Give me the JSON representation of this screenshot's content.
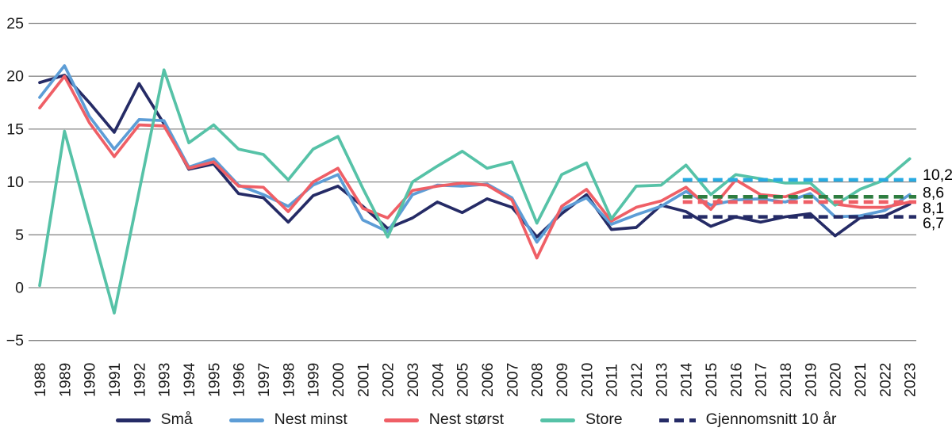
{
  "chart_data": {
    "type": "line",
    "title": "",
    "xlabel": "",
    "ylabel": "",
    "grid": true,
    "grid_color": "#8a8a8a",
    "text_color": "#1a1a1a",
    "background": "#ffffff",
    "x": [
      1988,
      1989,
      1990,
      1991,
      1992,
      1993,
      1994,
      1995,
      1996,
      1997,
      1998,
      1999,
      2000,
      2001,
      2002,
      2003,
      2004,
      2005,
      2006,
      2007,
      2008,
      2009,
      2010,
      2011,
      2012,
      2013,
      2014,
      2015,
      2016,
      2017,
      2018,
      2019,
      2020,
      2021,
      2022,
      2023
    ],
    "yticks": [
      {
        "v": 25,
        "label": "25"
      },
      {
        "v": 20,
        "label": "20"
      },
      {
        "v": 15,
        "label": "15"
      },
      {
        "v": 10,
        "label": "10"
      },
      {
        "v": 5,
        "label": "5"
      },
      {
        "v": 0,
        "label": "0"
      },
      {
        "v": -5,
        "label": "−5"
      }
    ],
    "ylim": [
      -5,
      25
    ],
    "series": [
      {
        "name": "Små",
        "color": "#252b66",
        "values": [
          19.4,
          20.1,
          17.5,
          14.7,
          19.3,
          15.5,
          11.2,
          11.7,
          8.9,
          8.5,
          6.2,
          8.7,
          9.6,
          7.7,
          5.6,
          6.6,
          8.1,
          7.1,
          8.4,
          7.6,
          4.8,
          7.0,
          8.8,
          5.5,
          5.7,
          7.8,
          7.2,
          5.8,
          6.7,
          6.2,
          6.7,
          7.0,
          4.9,
          6.6,
          6.8,
          7.9
        ]
      },
      {
        "name": "Nest minst",
        "color": "#5d9dd6",
        "values": [
          18.0,
          21.0,
          16.2,
          13.1,
          15.9,
          15.8,
          11.4,
          12.2,
          9.7,
          8.8,
          7.7,
          9.7,
          10.7,
          6.4,
          5.3,
          8.8,
          9.7,
          9.6,
          9.8,
          8.5,
          4.3,
          7.4,
          8.5,
          6.0,
          6.9,
          7.7,
          9.1,
          7.8,
          8.3,
          8.4,
          8.1,
          8.9,
          6.7,
          6.8,
          7.3,
          8.8
        ]
      },
      {
        "name": "Nest størst",
        "color": "#ef5f66",
        "values": [
          17.0,
          20.0,
          15.6,
          12.4,
          15.4,
          15.3,
          11.3,
          11.9,
          9.6,
          9.5,
          7.2,
          10.0,
          11.3,
          7.5,
          6.6,
          9.2,
          9.6,
          9.9,
          9.7,
          8.3,
          2.8,
          7.7,
          9.3,
          6.3,
          7.6,
          8.2,
          9.5,
          7.4,
          10.2,
          8.8,
          8.6,
          9.4,
          7.9,
          7.6,
          7.6,
          8.1
        ]
      },
      {
        "name": "Store",
        "color": "#56c2a7",
        "values": [
          0.2,
          14.8,
          6.2,
          -2.4,
          9.1,
          20.6,
          13.7,
          15.4,
          13.1,
          12.6,
          10.2,
          13.1,
          14.3,
          9.4,
          4.8,
          10.0,
          11.5,
          12.9,
          11.3,
          11.9,
          6.1,
          10.7,
          11.8,
          6.5,
          9.6,
          9.7,
          11.6,
          8.8,
          10.7,
          10.3,
          9.9,
          9.9,
          7.8,
          9.3,
          10.2,
          12.2
        ]
      }
    ],
    "averages": {
      "start_year": 2014,
      "lines": [
        {
          "label": "10,2",
          "value": 10.2,
          "color": "#29abe2"
        },
        {
          "label": "8,6",
          "value": 8.6,
          "color": "#2e7d40"
        },
        {
          "label": "8,1",
          "value": 8.1,
          "color": "#ef5f66"
        },
        {
          "label": "6,7",
          "value": 6.7,
          "color": "#252b66"
        }
      ]
    }
  },
  "legend": {
    "items": [
      {
        "label": "Små",
        "color": "#252b66",
        "dashed": false
      },
      {
        "label": "Nest minst",
        "color": "#5d9dd6",
        "dashed": false
      },
      {
        "label": "Nest størst",
        "color": "#ef5f66",
        "dashed": false
      },
      {
        "label": "Store",
        "color": "#56c2a7",
        "dashed": false
      },
      {
        "label": "Gjennomsnitt 10 år",
        "color": "#252b66",
        "dashed": true
      }
    ]
  }
}
